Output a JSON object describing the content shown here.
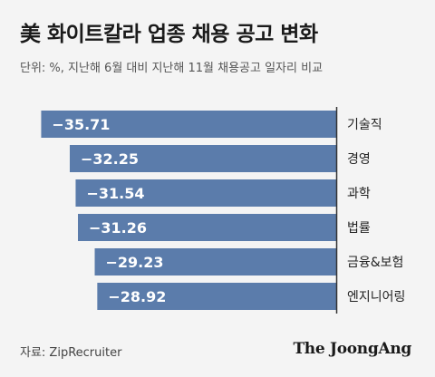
{
  "title": "美 화이트칼라 업종 채용 공고 변화",
  "subtitle": "단위: %, 지난해 6월 대비 지난해 11월 채용공고 일자리 비교",
  "source": "자료: ZipRecruiter",
  "brand": "The JoongAng",
  "colors": {
    "bar": "#5b7cab",
    "axis": "#333333",
    "label_text": "#ffffff"
  },
  "chart_data": {
    "type": "bar",
    "orientation": "horizontal",
    "categories": [
      "기술직",
      "경영",
      "과학",
      "법률",
      "금융&보험",
      "엔지니어링"
    ],
    "values": [
      -35.71,
      -32.25,
      -31.54,
      -31.26,
      -29.23,
      -28.92
    ],
    "value_labels": [
      "−35.71",
      "−32.25",
      "−31.54",
      "−31.26",
      "−29.23",
      "−28.92"
    ],
    "title": "美 화이트칼라 업종 채용 공고 변화",
    "xlabel": "",
    "ylabel": "",
    "xlim": [
      -38.5,
      0
    ],
    "grid": false,
    "legend": "none"
  }
}
